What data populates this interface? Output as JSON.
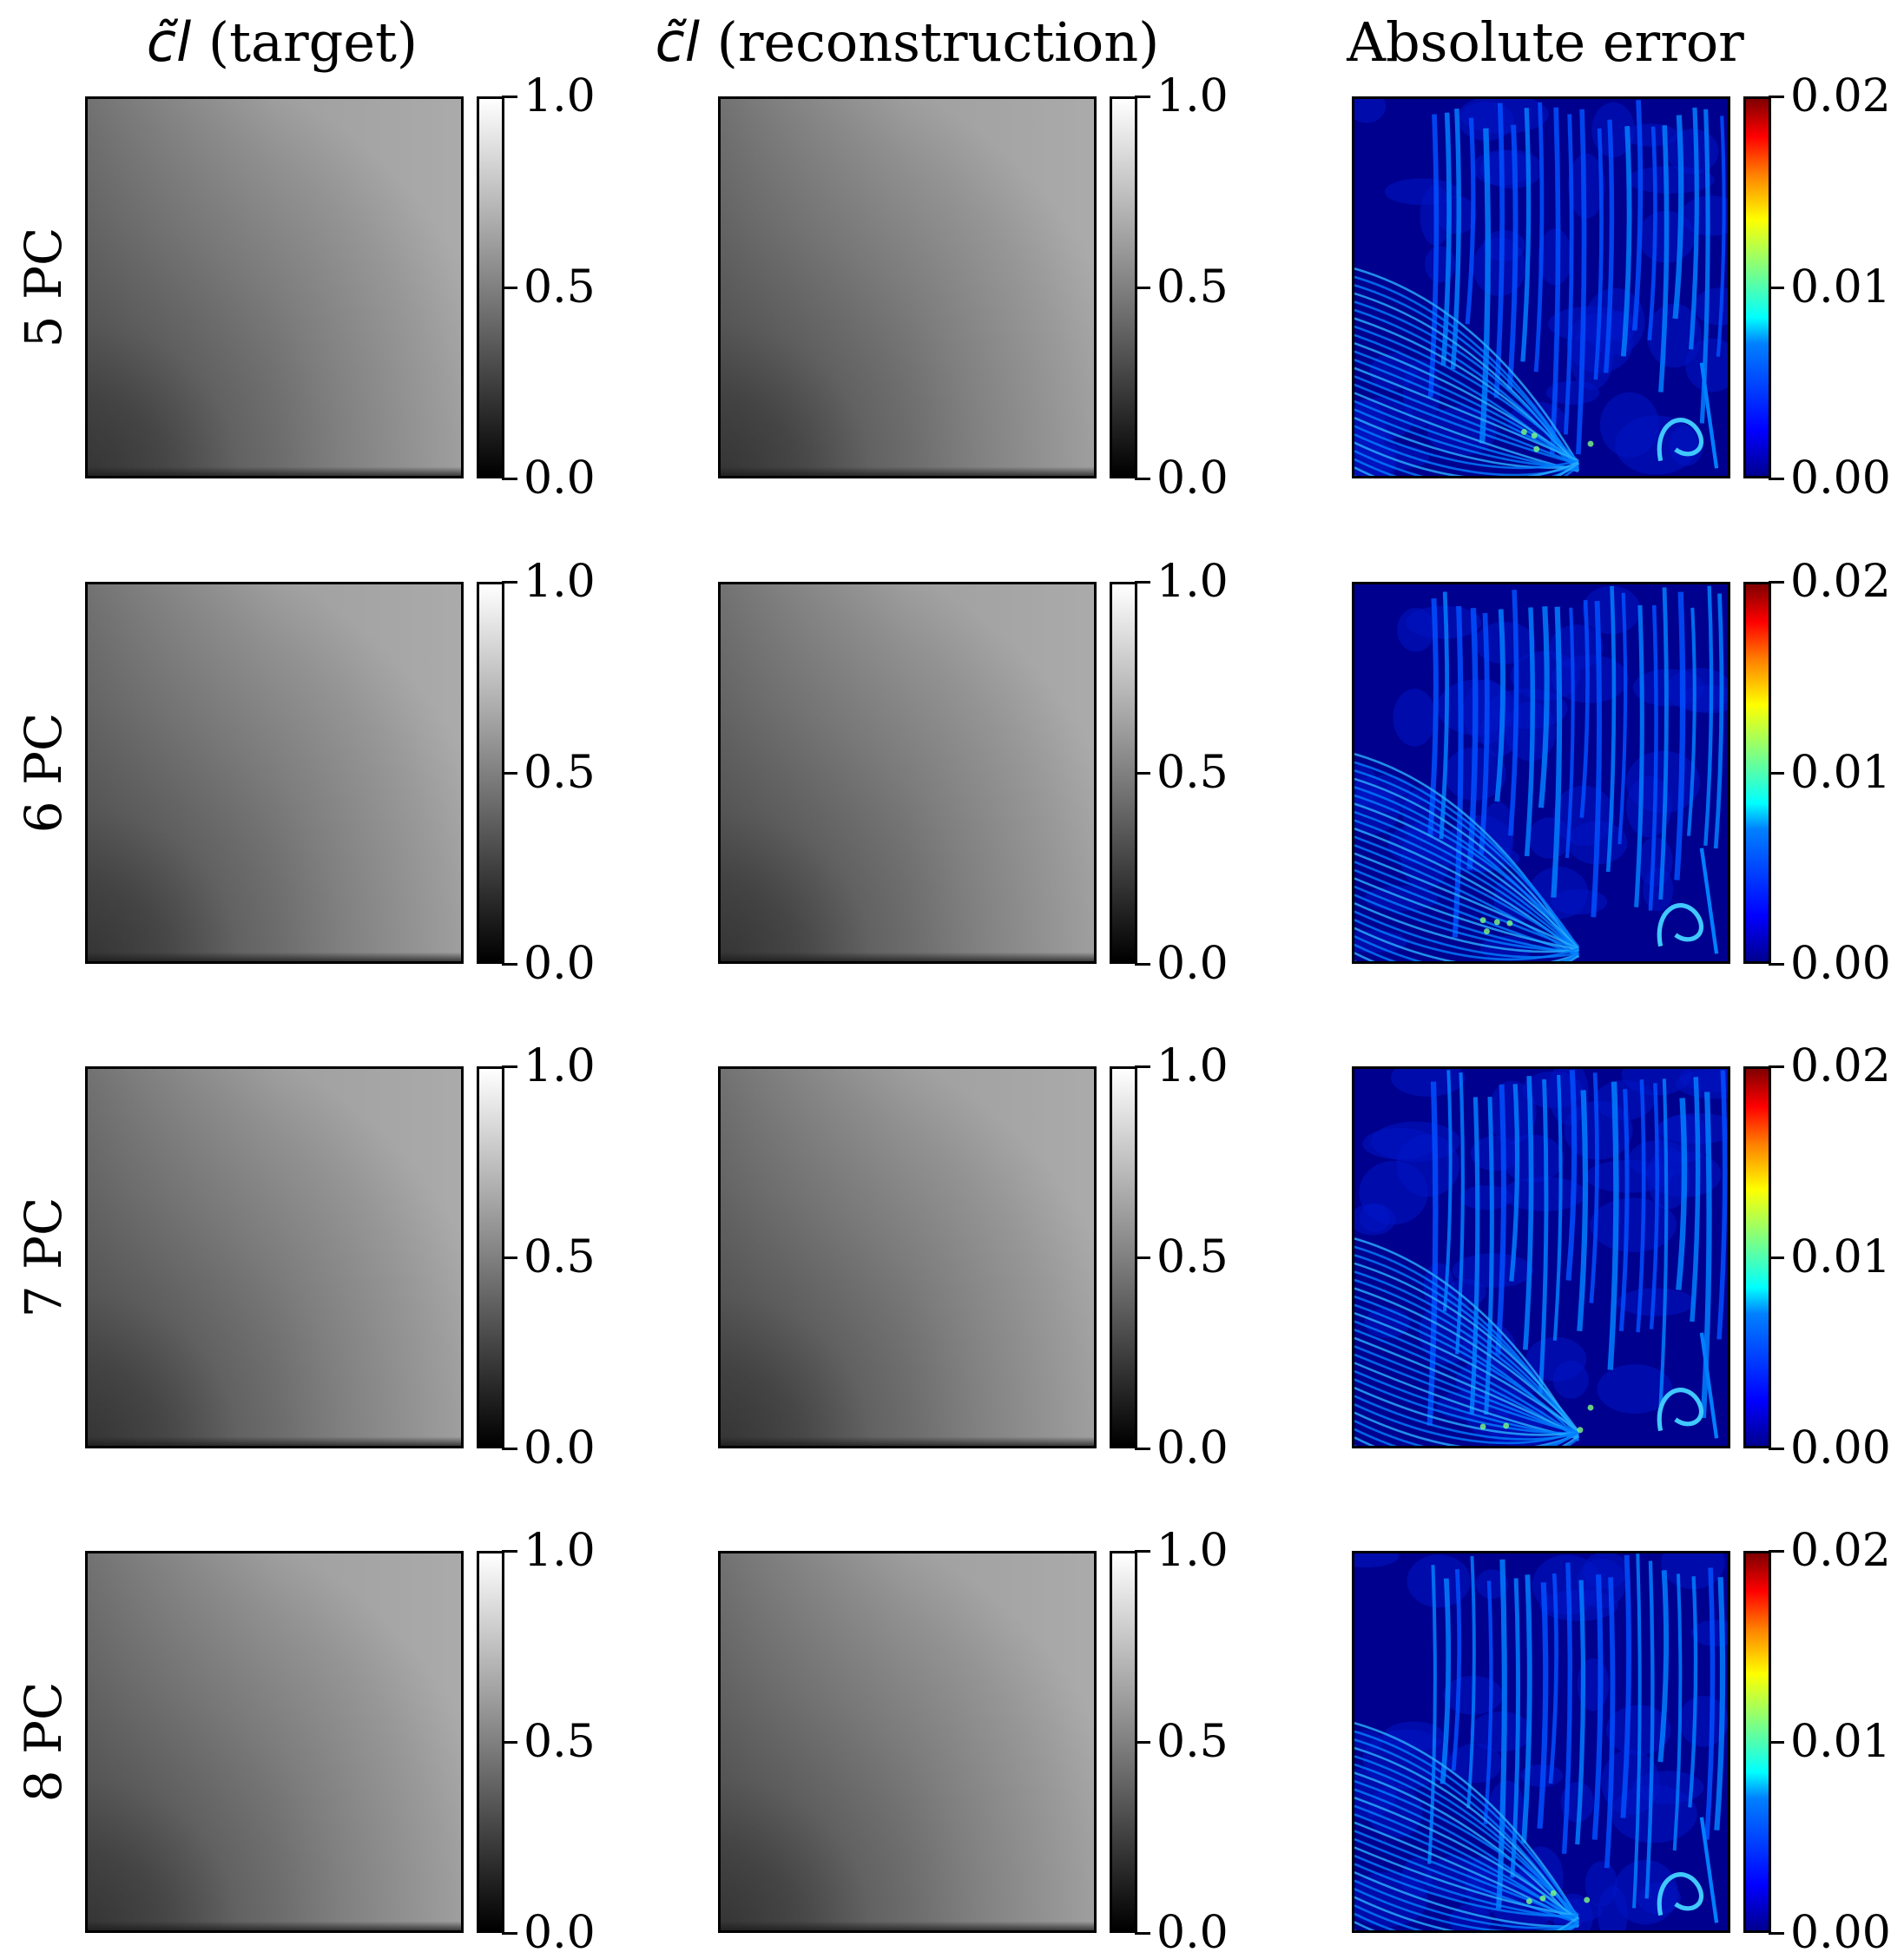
{
  "chart_data": {
    "type": "heatmap",
    "columns": [
      {
        "id": "target",
        "symbol": "c̃l",
        "title": "(target)",
        "colormap": "gray",
        "colorbar": {
          "min": 0.0,
          "max": 1.0,
          "ticks": [
            "0.0",
            "0.5",
            "1.0"
          ]
        }
      },
      {
        "id": "reconstruction",
        "symbol": "c̃l",
        "title": "(reconstruction)",
        "colormap": "gray",
        "colorbar": {
          "min": 0.0,
          "max": 1.0,
          "ticks": [
            "0.0",
            "0.5",
            "1.0"
          ]
        }
      },
      {
        "id": "error",
        "symbol": "",
        "title": "Absolute error",
        "colormap": "jet",
        "colorbar": {
          "min": 0.0,
          "max": 0.02,
          "ticks": [
            "0.00",
            "0.01",
            "0.02"
          ]
        }
      }
    ],
    "rows": [
      {
        "label": "5 PC"
      },
      {
        "label": "6 PC"
      },
      {
        "label": "7 PC"
      },
      {
        "label": "8 PC"
      }
    ],
    "field_description_values": {
      "target_range": [
        0.0,
        1.0
      ],
      "error_range": [
        0.0,
        0.02
      ]
    }
  },
  "colors": {
    "jet_low": "#00008f",
    "jet_mid_low": "#0080ff",
    "jet_mid": "#80ff80",
    "jet_mid_high": "#ff8000",
    "jet_high": "#800000"
  }
}
